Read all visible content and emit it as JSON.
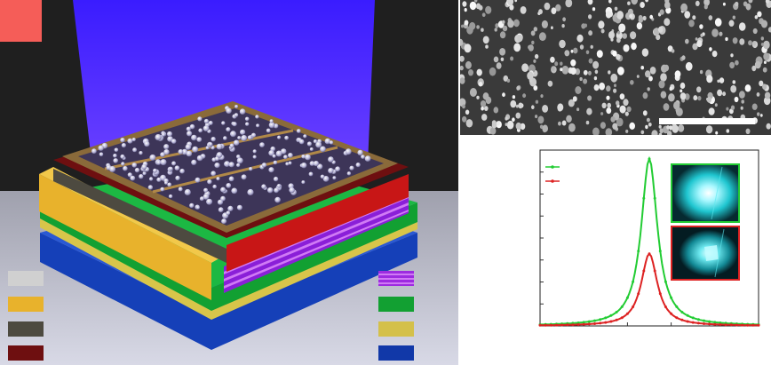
{
  "render": {
    "panel_tag_color": "#f55d58",
    "light_color": "#4422ff",
    "left_legend": [
      {
        "name": "legend-swatch-light-grey",
        "color": "#d0d0d0"
      },
      {
        "name": "legend-swatch-gold",
        "color": "#e8b22c"
      },
      {
        "name": "legend-swatch-dark-grey",
        "color": "#4d4a40"
      },
      {
        "name": "legend-swatch-dark-red",
        "color": "#6e0f10"
      }
    ],
    "right_legend": [
      {
        "name": "legend-swatch-purple-stripes",
        "color": "#9d2be0"
      },
      {
        "name": "legend-swatch-green",
        "color": "#12a032"
      },
      {
        "name": "legend-swatch-yellow",
        "color": "#d4c04a"
      },
      {
        "name": "legend-swatch-blue",
        "color": "#1138a8"
      }
    ]
  },
  "sem": {
    "scale_bar_color": "#ffffff"
  },
  "chart_data": {
    "type": "line",
    "title": "",
    "xlabel": "",
    "ylabel": "",
    "ylim": [
      0,
      1
    ],
    "series": [
      {
        "color": "#22cc33",
        "peak_center": 0.5,
        "peak_height": 0.95,
        "half_width": 0.045
      },
      {
        "color": "#dd2222",
        "peak_center": 0.5,
        "peak_height": 0.41,
        "half_width": 0.045
      }
    ],
    "legend_placement": "top-left",
    "inset_images": [
      {
        "name": "inset-emission-image-top",
        "frame_color": "#22cc33",
        "glow_color": "#1fe3e8"
      },
      {
        "name": "inset-emission-image-bottom",
        "frame_color": "#dd2222",
        "glow_color": "#1fe3e8"
      }
    ]
  }
}
